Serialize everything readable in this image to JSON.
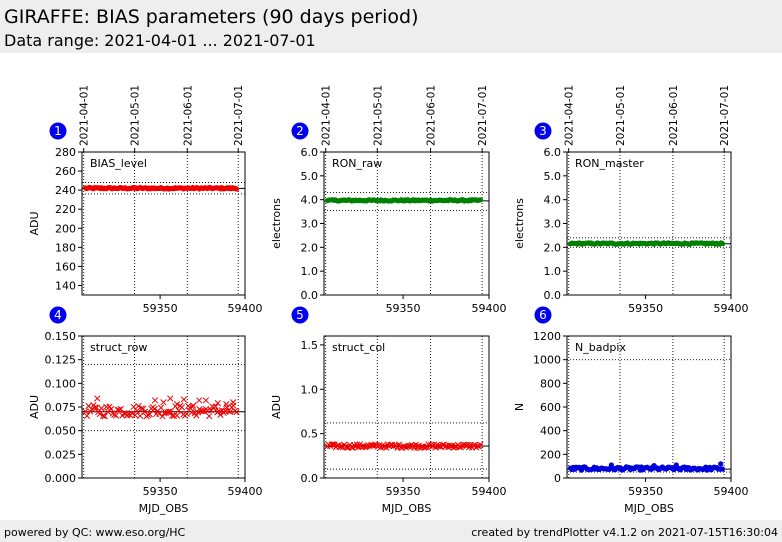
{
  "header": {
    "title": "GIRAFFE: BIAS parameters (90 days period)",
    "subtitle": "Data range: 2021-04-01 ... 2021-07-01"
  },
  "footer": {
    "left": "powered by QC: www.eso.org/HC",
    "right": "created by trendPlotter v4.1.2 on 2021-07-15T16:30:04"
  },
  "colors": {
    "badge": "#0000ee",
    "green": "#008000",
    "red": "#ee0000",
    "blue": "#0000dd"
  },
  "chart_data": [
    {
      "type": "scatter",
      "panel": "1",
      "label": "BIAS_level",
      "ylabel": "ADU",
      "xlabel": "",
      "xlim": [
        59304,
        59400
      ],
      "ylim": [
        130,
        280
      ],
      "yticks": [
        140,
        160,
        180,
        200,
        220,
        240,
        260,
        280
      ],
      "ytick_labels": [
        "140",
        "160",
        "180",
        "200",
        "220",
        "240",
        "260",
        "280"
      ],
      "xticks": [
        59350,
        59400
      ],
      "xtick_labels": [
        "59350",
        "59400"
      ],
      "date_ticks": [
        "2021-04-01",
        "2021-05-01",
        "2021-06-01",
        "2021-07-01"
      ],
      "date_tick_mjd": [
        59305,
        59335,
        59366,
        59396
      ],
      "marker": "dot",
      "color": "#ee0000",
      "x_range": [
        59306,
        59395
      ],
      "n_points": 115,
      "y_center": 242,
      "y_spread": 0.8,
      "hlines": [
        {
          "value": 241.8,
          "style": "solid"
        },
        {
          "value": 248,
          "style": "dotted"
        },
        {
          "value": 236,
          "style": "dotted"
        }
      ]
    },
    {
      "type": "scatter",
      "panel": "2",
      "label": "RON_raw",
      "ylabel": "electrons",
      "xlabel": "",
      "xlim": [
        59304,
        59400
      ],
      "ylim": [
        0,
        6
      ],
      "yticks": [
        0,
        1,
        2,
        3,
        4,
        5,
        6
      ],
      "ytick_labels": [
        "0.0",
        "1.0",
        "2.0",
        "3.0",
        "4.0",
        "5.0",
        "6.0"
      ],
      "xticks": [
        59350,
        59400
      ],
      "xtick_labels": [
        "59350",
        "59400"
      ],
      "date_ticks": [
        "2021-04-01",
        "2021-05-01",
        "2021-06-01",
        "2021-07-01"
      ],
      "date_tick_mjd": [
        59305,
        59335,
        59366,
        59396
      ],
      "marker": "dot",
      "color": "#008000",
      "x_range": [
        59306,
        59395
      ],
      "n_points": 115,
      "y_center": 3.97,
      "y_spread": 0.03,
      "hlines": [
        {
          "value": 3.95,
          "style": "solid"
        },
        {
          "value": 4.3,
          "style": "dotted"
        },
        {
          "value": 3.55,
          "style": "dotted"
        }
      ]
    },
    {
      "type": "scatter",
      "panel": "3",
      "label": "RON_master",
      "ylabel": "electrons",
      "xlabel": "",
      "xlim": [
        59304,
        59400
      ],
      "ylim": [
        0,
        6
      ],
      "yticks": [
        0,
        1,
        2,
        3,
        4,
        5,
        6
      ],
      "ytick_labels": [
        "0.0",
        "1.0",
        "2.0",
        "3.0",
        "4.0",
        "5.0",
        "6.0"
      ],
      "xticks": [
        59350,
        59400
      ],
      "xtick_labels": [
        "59350",
        "59400"
      ],
      "date_ticks": [
        "2021-04-01",
        "2021-05-01",
        "2021-06-01",
        "2021-07-01"
      ],
      "date_tick_mjd": [
        59305,
        59335,
        59366,
        59396
      ],
      "marker": "dot",
      "color": "#008000",
      "x_range": [
        59306,
        59395
      ],
      "n_points": 110,
      "y_center": 2.16,
      "y_spread": 0.03,
      "hlines": [
        {
          "value": 2.15,
          "style": "solid"
        },
        {
          "value": 2.4,
          "style": "dotted"
        },
        {
          "value": 2.0,
          "style": "dotted"
        }
      ]
    },
    {
      "type": "scatter",
      "panel": "4",
      "label": "struct_row",
      "ylabel": "ADU",
      "xlabel": "MJD_OBS",
      "xlim": [
        59304,
        59400
      ],
      "ylim": [
        0,
        0.15
      ],
      "yticks": [
        0,
        0.025,
        0.05,
        0.075,
        0.1,
        0.125,
        0.15
      ],
      "ytick_labels": [
        "0.000",
        "0.025",
        "0.050",
        "0.075",
        "0.100",
        "0.125",
        "0.150"
      ],
      "xticks": [
        59350,
        59400
      ],
      "xtick_labels": [
        "59350",
        "59400"
      ],
      "date_ticks": [],
      "date_tick_mjd": [
        59305,
        59335,
        59366,
        59396
      ],
      "marker": "x",
      "color": "#ee0000",
      "x_range": [
        59306,
        59395
      ],
      "n_points": 95,
      "y_center": 0.071,
      "y_spread": 0.006,
      "hlines": [
        {
          "value": 0.07,
          "style": "solid"
        },
        {
          "value": 0.12,
          "style": "dotted"
        },
        {
          "value": 0.05,
          "style": "dotted"
        }
      ],
      "points": [
        [
          59313,
          0.084
        ],
        [
          59347,
          0.082
        ],
        [
          59352,
          0.08
        ],
        [
          59356,
          0.084
        ],
        [
          59360,
          0.078
        ],
        [
          59364,
          0.083
        ],
        [
          59369,
          0.075
        ],
        [
          59373,
          0.082
        ],
        [
          59377,
          0.082
        ],
        [
          59384,
          0.079
        ],
        [
          59389,
          0.078
        ],
        [
          59393,
          0.08
        ]
      ]
    },
    {
      "type": "scatter",
      "panel": "5",
      "label": "struct_col",
      "ylabel": "ADU",
      "xlabel": "MJD_OBS",
      "xlim": [
        59304,
        59400
      ],
      "ylim": [
        0,
        1.6
      ],
      "yticks": [
        0,
        0.5,
        1.0,
        1.5
      ],
      "ytick_labels": [
        "0.0",
        "0.5",
        "1.0",
        "1.5"
      ],
      "xticks": [
        59350,
        59400
      ],
      "xtick_labels": [
        "59350",
        "59400"
      ],
      "date_ticks": [],
      "date_tick_mjd": [
        59305,
        59335,
        59366,
        59396
      ],
      "marker": "x",
      "color": "#ee0000",
      "x_range": [
        59306,
        59395
      ],
      "n_points": 110,
      "y_center": 0.36,
      "y_spread": 0.02,
      "hlines": [
        {
          "value": 0.36,
          "style": "solid"
        },
        {
          "value": 0.62,
          "style": "dotted"
        },
        {
          "value": 0.1,
          "style": "dotted"
        }
      ]
    },
    {
      "type": "scatter",
      "panel": "6",
      "label": "N_badpix",
      "ylabel": "N",
      "xlabel": "MJD_OBS",
      "xlim": [
        59304,
        59400
      ],
      "ylim": [
        0,
        1200
      ],
      "yticks": [
        0,
        200,
        400,
        600,
        800,
        1000,
        1200
      ],
      "ytick_labels": [
        "0",
        "200",
        "400",
        "600",
        "800",
        "1000",
        "1200"
      ],
      "xticks": [
        59350,
        59400
      ],
      "xtick_labels": [
        "59350",
        "59400"
      ],
      "date_ticks": [],
      "date_tick_mjd": [
        59305,
        59335,
        59366,
        59396
      ],
      "marker": "dot",
      "color": "#0000dd",
      "x_range": [
        59306,
        59395
      ],
      "n_points": 110,
      "y_center": 80,
      "y_spread": 14,
      "hlines": [
        {
          "value": 75,
          "style": "solid"
        },
        {
          "value": 1000,
          "style": "dotted"
        },
        {
          "value": 50,
          "style": "dotted"
        }
      ],
      "points": [
        [
          59394,
          120
        ],
        [
          59330,
          110
        ],
        [
          59355,
          105
        ],
        [
          59368,
          110
        ]
      ]
    }
  ]
}
